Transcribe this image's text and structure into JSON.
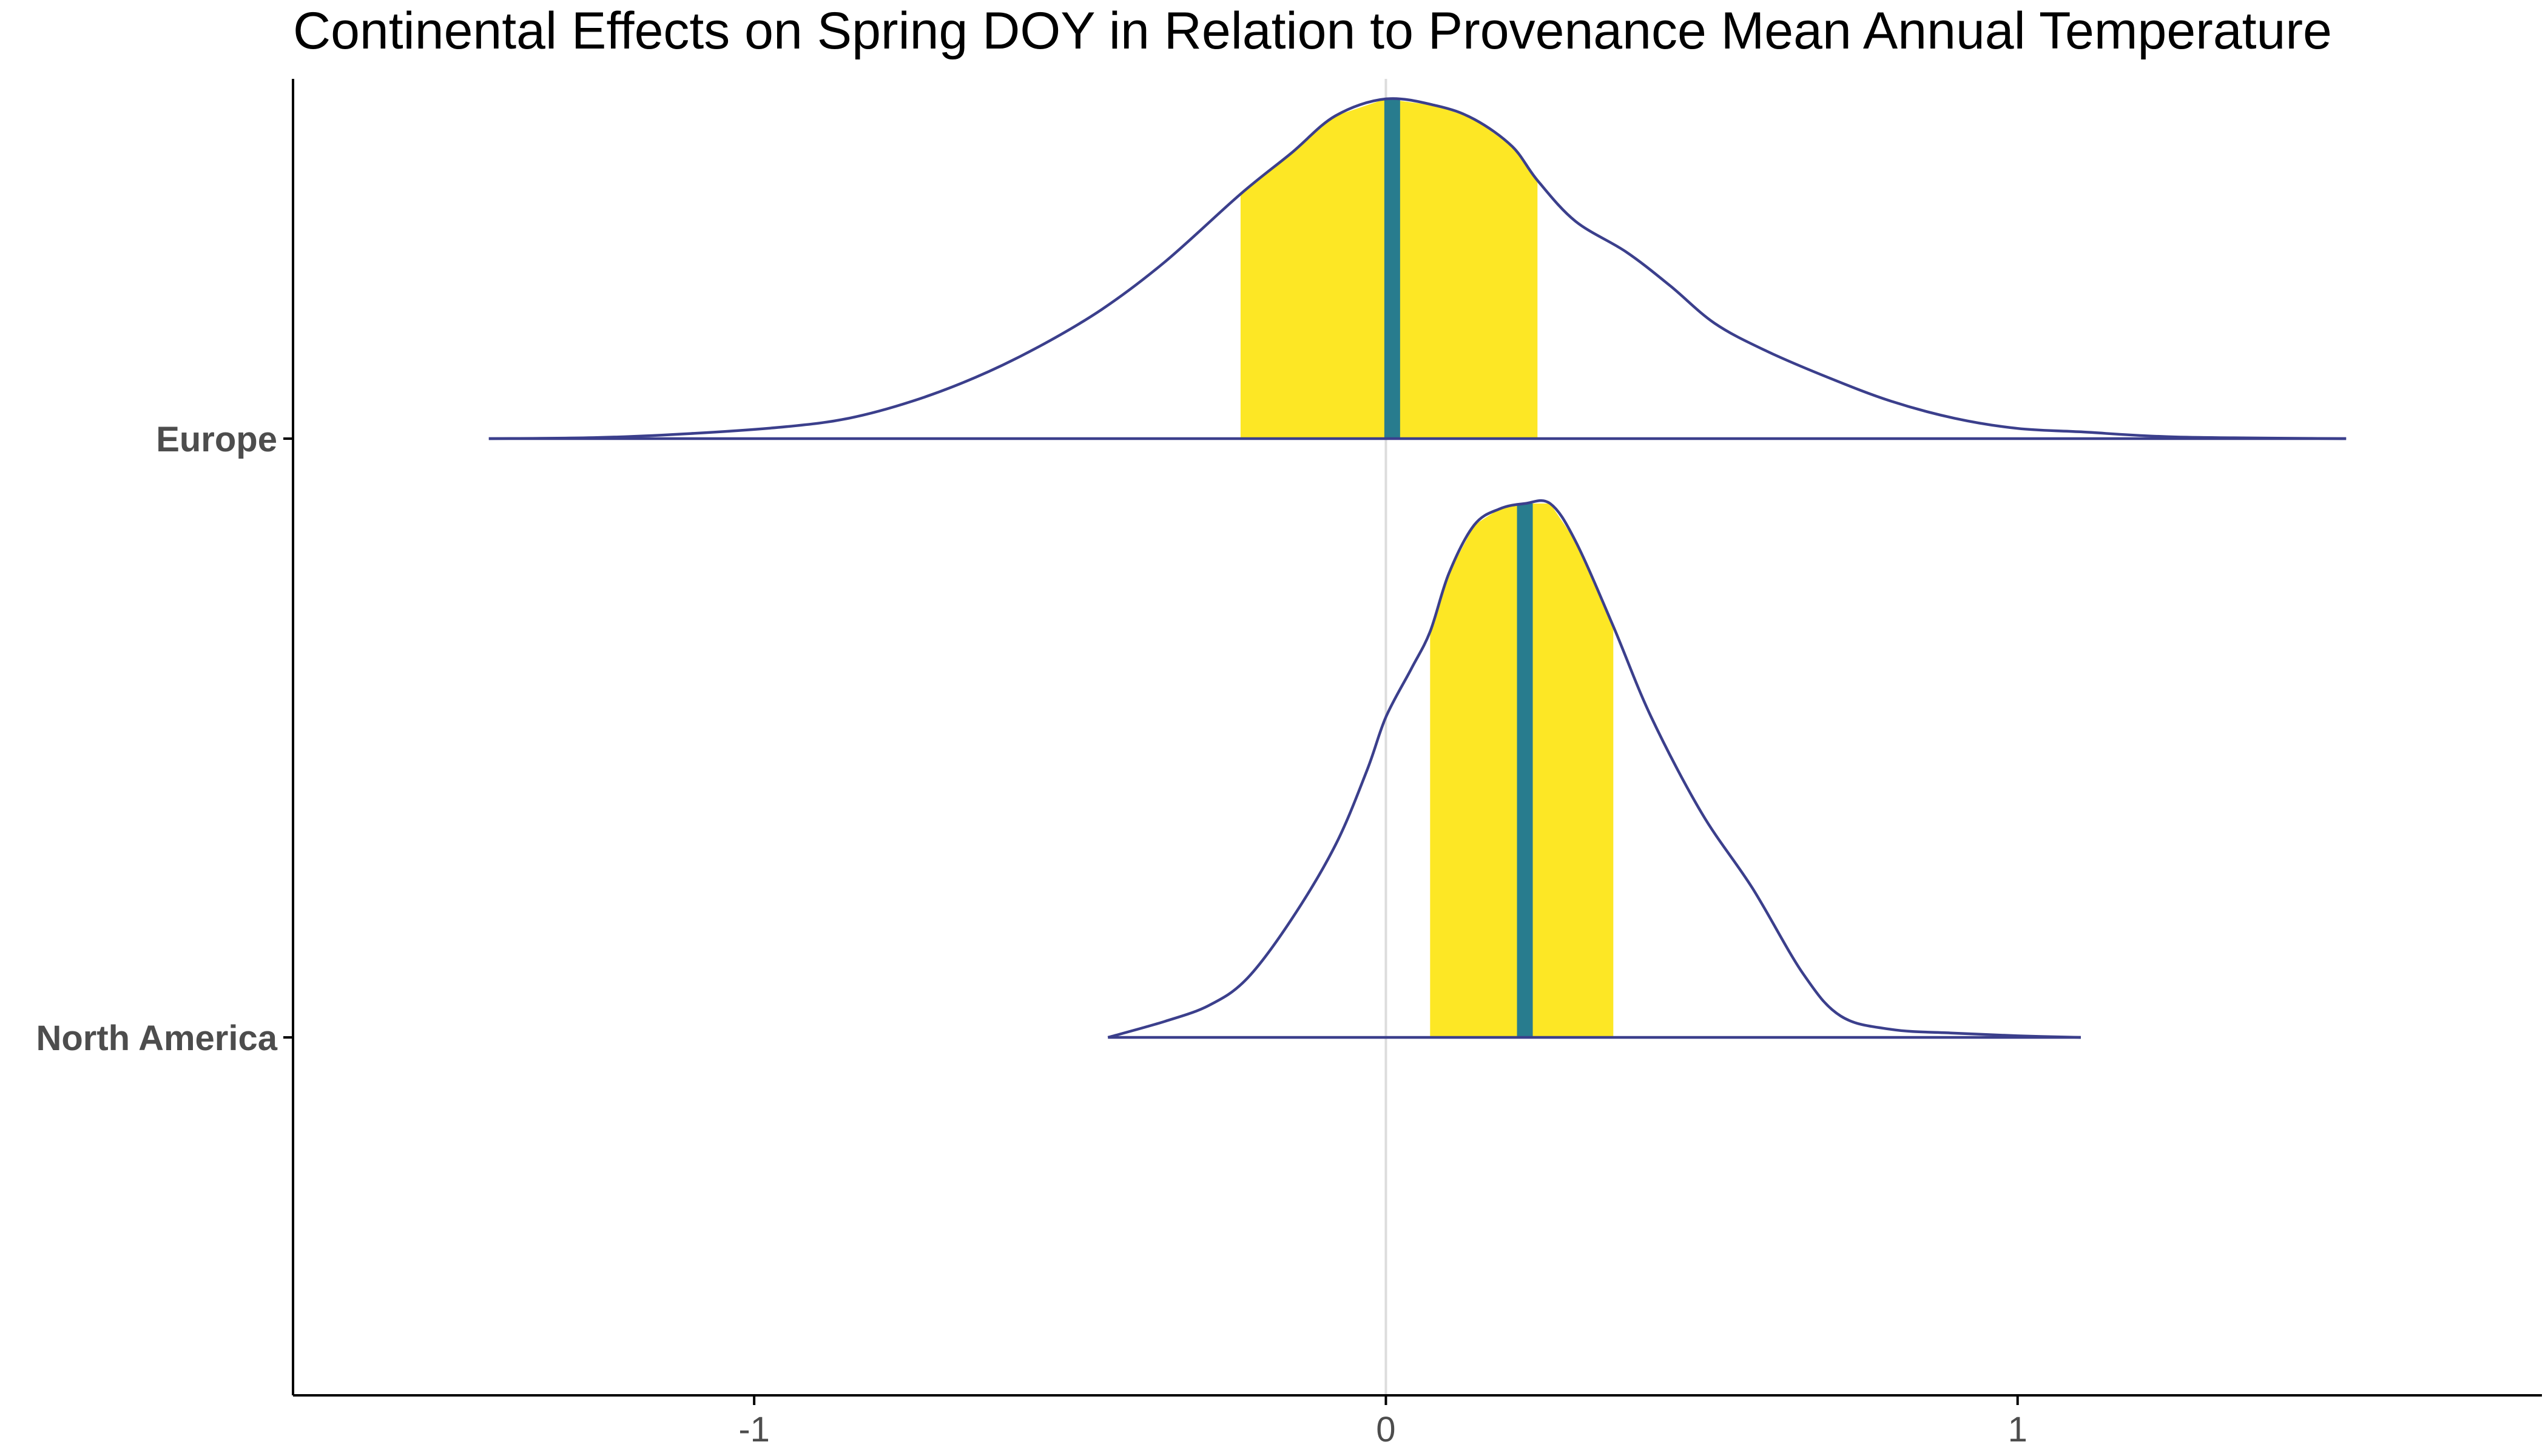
{
  "chart_data": {
    "type": "ridgeline-density",
    "title": "Continental Effects on Spring DOY in Relation to Provenance Mean Annual Temperature",
    "xlabel": "",
    "ylabel": "",
    "xlim": [
      -1.73,
      1.83
    ],
    "x_ticks": [
      {
        "value": -1,
        "label": "-1"
      },
      {
        "value": 0,
        "label": "0"
      },
      {
        "value": 1,
        "label": "1"
      }
    ],
    "reference_line_x": 0,
    "grid": false,
    "legend": "none",
    "colors": {
      "density_line": "#3b3f8c",
      "interval_fill": "#fde725",
      "median_line": "#287c8e",
      "zero_line": "#dcdcdc",
      "axis": "#000000",
      "tick_label": "#4d4d4d"
    },
    "categories": [
      "Europe",
      "North America"
    ],
    "series": [
      {
        "name": "Europe",
        "median": 0.01,
        "interval": [
          -0.23,
          0.24
        ],
        "density": [
          [
            -1.42,
            0.0
          ],
          [
            -1.25,
            0.003
          ],
          [
            -1.1,
            0.015
          ],
          [
            -0.95,
            0.035
          ],
          [
            -0.85,
            0.06
          ],
          [
            -0.75,
            0.11
          ],
          [
            -0.65,
            0.18
          ],
          [
            -0.55,
            0.27
          ],
          [
            -0.45,
            0.38
          ],
          [
            -0.35,
            0.52
          ],
          [
            -0.23,
            0.72
          ],
          [
            -0.15,
            0.84
          ],
          [
            -0.08,
            0.95
          ],
          [
            0.0,
            1.0
          ],
          [
            0.08,
            0.98
          ],
          [
            0.14,
            0.94
          ],
          [
            0.2,
            0.86
          ],
          [
            0.24,
            0.76
          ],
          [
            0.3,
            0.64
          ],
          [
            0.38,
            0.55
          ],
          [
            0.45,
            0.45
          ],
          [
            0.52,
            0.34
          ],
          [
            0.6,
            0.26
          ],
          [
            0.7,
            0.18
          ],
          [
            0.8,
            0.11
          ],
          [
            0.9,
            0.06
          ],
          [
            1.0,
            0.03
          ],
          [
            1.1,
            0.02
          ],
          [
            1.25,
            0.005
          ],
          [
            1.52,
            0.0
          ]
        ]
      },
      {
        "name": "North America",
        "median": 0.22,
        "interval": [
          0.07,
          0.36
        ],
        "density": [
          [
            -0.44,
            0.0
          ],
          [
            -0.35,
            0.03
          ],
          [
            -0.28,
            0.06
          ],
          [
            -0.22,
            0.11
          ],
          [
            -0.15,
            0.22
          ],
          [
            -0.08,
            0.36
          ],
          [
            -0.03,
            0.5
          ],
          [
            0.0,
            0.6
          ],
          [
            0.04,
            0.69
          ],
          [
            0.07,
            0.76
          ],
          [
            0.1,
            0.87
          ],
          [
            0.14,
            0.96
          ],
          [
            0.18,
            0.99
          ],
          [
            0.22,
            1.0
          ],
          [
            0.26,
            1.0
          ],
          [
            0.3,
            0.93
          ],
          [
            0.36,
            0.77
          ],
          [
            0.42,
            0.6
          ],
          [
            0.5,
            0.42
          ],
          [
            0.58,
            0.28
          ],
          [
            0.66,
            0.12
          ],
          [
            0.72,
            0.04
          ],
          [
            0.8,
            0.015
          ],
          [
            0.9,
            0.008
          ],
          [
            1.0,
            0.003
          ],
          [
            1.1,
            0.0
          ]
        ]
      }
    ]
  }
}
